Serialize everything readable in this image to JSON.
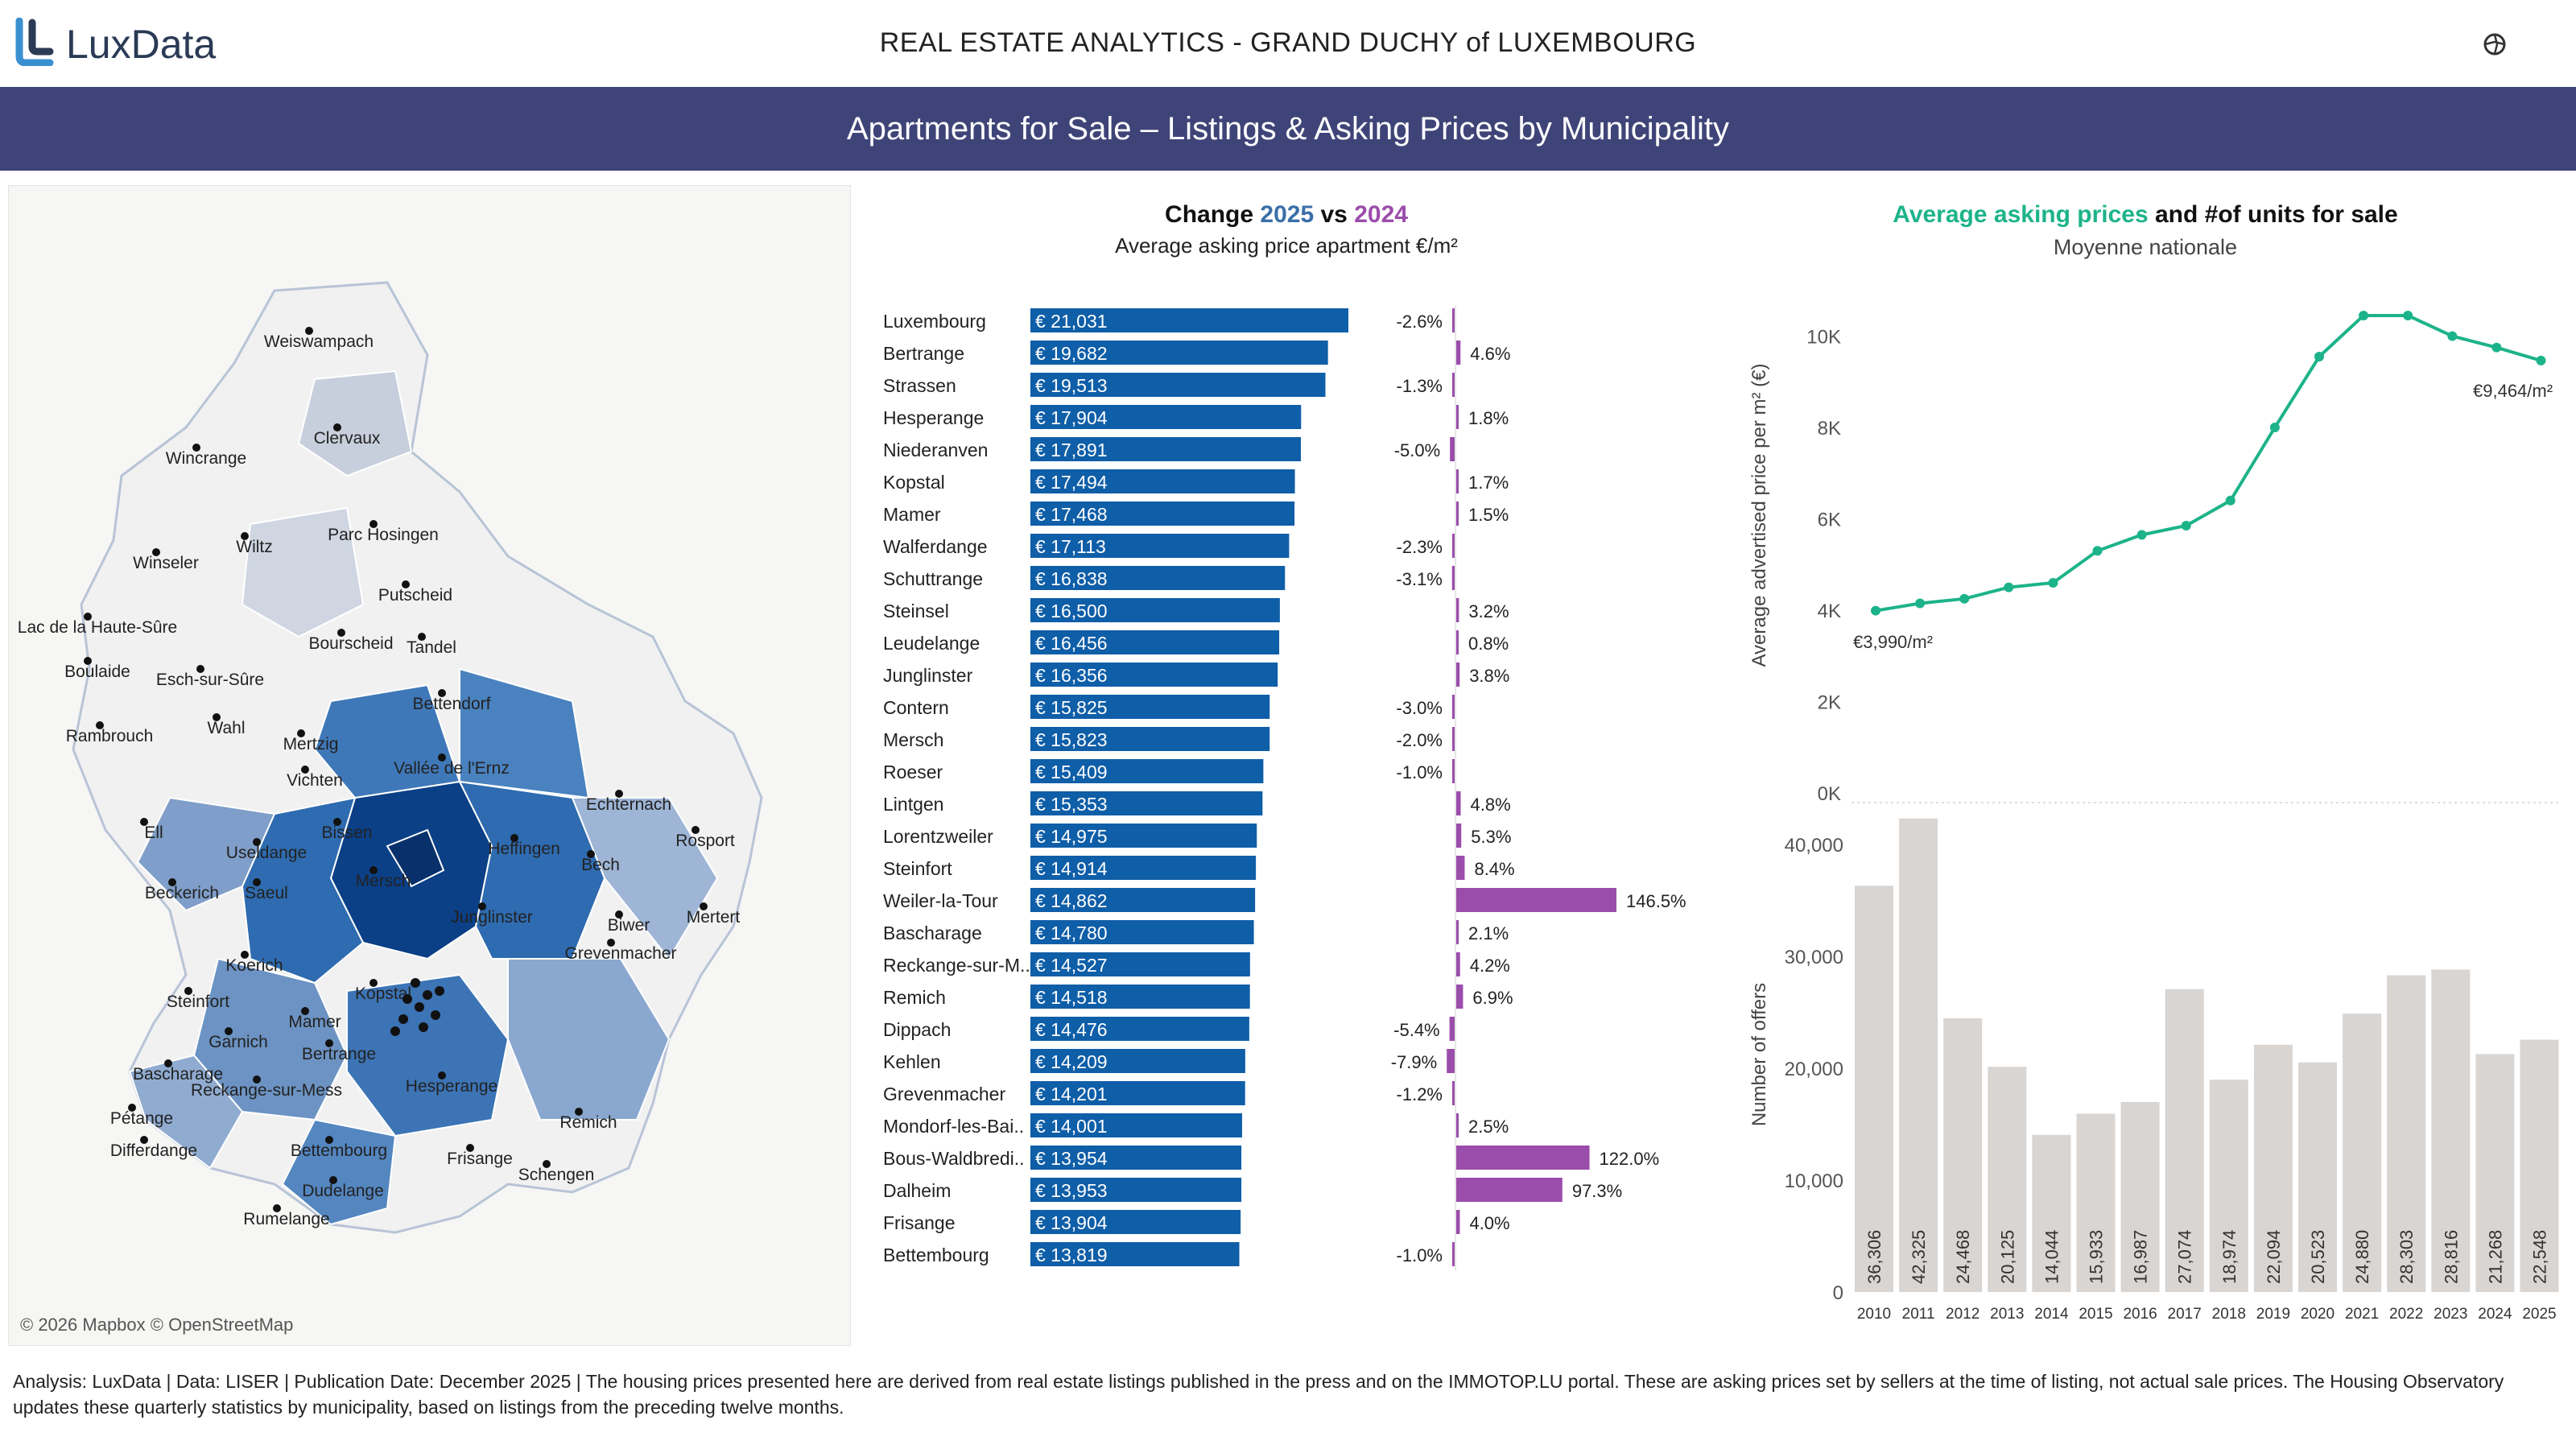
{
  "brand": {
    "name": "LuxData",
    "logo_icon": "luxdata-logo-icon"
  },
  "header": {
    "title": "REAL ESTATE ANALYTICS - GRAND DUCHY of LUXEMBOURG",
    "settings_icon": "settings-icon"
  },
  "banner": {
    "title": "Apartments for Sale – Listings & Asking Prices by Municipality"
  },
  "map": {
    "credit": "© 2026 Mapbox © OpenStreetMap",
    "labels": [
      "Weiswampach",
      "Clervaux",
      "Wincrange",
      "Parc Hosingen",
      "Wiltz",
      "Winseler",
      "Putscheid",
      "Lac de la Haute-Sûre",
      "Bourscheid",
      "Tandel",
      "Boulaide",
      "Esch-sur-Sûre",
      "Bettendorf",
      "Wahl",
      "Rambrouch",
      "Mertzig",
      "Vallée de l'Ernz",
      "Vichten",
      "Echternach",
      "Bissen",
      "Ell",
      "Useldange",
      "Heffingen",
      "Rosport",
      "Mersch",
      "Beckerich",
      "Saeul",
      "Bech",
      "Mertert",
      "Junglinster",
      "Biwer",
      "Grevenmacher",
      "Koerich",
      "Kopstal",
      "Steinfort",
      "Mamer",
      "Garnich",
      "Bertrange",
      "Bascharage",
      "Hesperange",
      "Reckange-sur-Mess",
      "Remich",
      "Pétange",
      "Differdange",
      "Bettembourg",
      "Frisange",
      "Schengen",
      "Dudelange",
      "Rumelange"
    ]
  },
  "colors": {
    "bar2025": "#0f5ea8",
    "change": "#9b4dab",
    "line": "#1db38a",
    "units": "#d8d5d2",
    "banner": "#3f4478"
  },
  "chart_data": [
    {
      "type": "bar",
      "title_parts": [
        "Change ",
        "2025",
        " vs ",
        "2024"
      ],
      "subtitle": "Average asking price apartment €/m²",
      "categories": [
        "Luxembourg",
        "Bertrange",
        "Strassen",
        "Hesperange",
        "Niederanven",
        "Kopstal",
        "Mamer",
        "Walferdange",
        "Schuttrange",
        "Steinsel",
        "Leudelange",
        "Junglinster",
        "Contern",
        "Mersch",
        "Roeser",
        "Lintgen",
        "Lorentzweiler",
        "Steinfort",
        "Weiler-la-Tour",
        "Bascharage",
        "Reckange-sur-M..",
        "Remich",
        "Dippach",
        "Kehlen",
        "Grevenmacher",
        "Mondorf-les-Bai..",
        "Bous-Waldbredi..",
        "Dalheim",
        "Frisange",
        "Bettembourg"
      ],
      "series": [
        {
          "name": "2025",
          "values": [
            21031,
            19682,
            19513,
            17904,
            17891,
            17494,
            17468,
            17113,
            16838,
            16500,
            16456,
            16356,
            15825,
            15823,
            15409,
            15353,
            14975,
            14914,
            14862,
            14780,
            14527,
            14518,
            14476,
            14209,
            14201,
            14001,
            13954,
            13953,
            13904,
            13819
          ],
          "labels": [
            "€ 21,031",
            "€ 19,682",
            "€ 19,513",
            "€ 17,904",
            "€ 17,891",
            "€ 17,494",
            "€ 17,468",
            "€ 17,113",
            "€ 16,838",
            "€ 16,500",
            "€ 16,456",
            "€ 16,356",
            "€ 15,825",
            "€ 15,823",
            "€ 15,409",
            "€ 15,353",
            "€ 14,975",
            "€ 14,914",
            "€ 14,862",
            "€ 14,780",
            "€ 14,527",
            "€ 14,518",
            "€ 14,476",
            "€ 14,209",
            "€ 14,201",
            "€ 14,001",
            "€ 13,954",
            "€ 13,953",
            "€ 13,904",
            "€ 13,819"
          ]
        },
        {
          "name": "change",
          "values": [
            -2.6,
            4.6,
            -1.3,
            1.8,
            -5.0,
            1.7,
            1.5,
            -2.3,
            -3.1,
            3.2,
            0.8,
            3.8,
            -3.0,
            -2.0,
            -1.0,
            4.8,
            5.3,
            8.4,
            146.5,
            2.1,
            4.2,
            6.9,
            -5.4,
            -7.9,
            -1.2,
            2.5,
            122.0,
            97.3,
            4.0,
            -1.0
          ],
          "labels": [
            "-2.6%",
            "4.6%",
            "-1.3%",
            "1.8%",
            "-5.0%",
            "1.7%",
            "1.5%",
            "-2.3%",
            "-3.1%",
            "3.2%",
            "0.8%",
            "3.8%",
            "-3.0%",
            "-2.0%",
            "-1.0%",
            "4.8%",
            "5.3%",
            "8.4%",
            "146.5%",
            "2.1%",
            "4.2%",
            "6.9%",
            "-5.4%",
            "-7.9%",
            "-1.2%",
            "2.5%",
            "122.0%",
            "97.3%",
            "4.0%",
            "-1.0%"
          ]
        }
      ]
    },
    {
      "type": "line",
      "title_parts": [
        "Average asking prices",
        " and #of units for sale"
      ],
      "subtitle": "Moyenne nationale",
      "ylabel": "Average advertised price per m² (€)",
      "yticks": [
        "0K",
        "2K",
        "4K",
        "6K",
        "8K",
        "10K"
      ],
      "ylim": [
        0,
        11000
      ],
      "x": [
        2010,
        2011,
        2012,
        2013,
        2014,
        2015,
        2016,
        2017,
        2018,
        2019,
        2020,
        2021,
        2022,
        2023,
        2024,
        2025
      ],
      "values": [
        3990,
        4150,
        4250,
        4500,
        4600,
        5300,
        5650,
        5850,
        6400,
        8000,
        9550,
        10450,
        10450,
        10000,
        9750,
        9464
      ],
      "annotations": [
        "€3,990/m²",
        "€9,464/m²"
      ]
    },
    {
      "type": "bar",
      "ylabel": "Number of offers",
      "yticks": [
        "0",
        "10,000",
        "20,000",
        "30,000",
        "40,000"
      ],
      "ylim": [
        0,
        45000
      ],
      "categories": [
        "2010",
        "2011",
        "2012",
        "2013",
        "2014",
        "2015",
        "2016",
        "2017",
        "2018",
        "2019",
        "2020",
        "2021",
        "2022",
        "2023",
        "2024",
        "2025"
      ],
      "values": [
        36306,
        42325,
        24468,
        20125,
        14044,
        15933,
        16987,
        27074,
        18974,
        22094,
        20523,
        24880,
        28303,
        28816,
        21268,
        22548
      ],
      "labels": [
        "36,306",
        "42,325",
        "24,468",
        "20,125",
        "14,044",
        "15,933",
        "16,987",
        "27,074",
        "18,974",
        "22,094",
        "20,523",
        "24,880",
        "28,303",
        "28,816",
        "21,268",
        "22,548"
      ]
    }
  ],
  "footer": {
    "text": "Analysis: LuxData | Data: LISER | Publication Date: December 2025 | The housing prices presented here are derived from real estate listings published in the press and on the IMMOTOP.LU portal. These are asking prices set by sellers at the time of listing, not actual sale prices. The Housing Observatory updates these quarterly statistics by municipality, based on listings from the preceding twelve months."
  }
}
